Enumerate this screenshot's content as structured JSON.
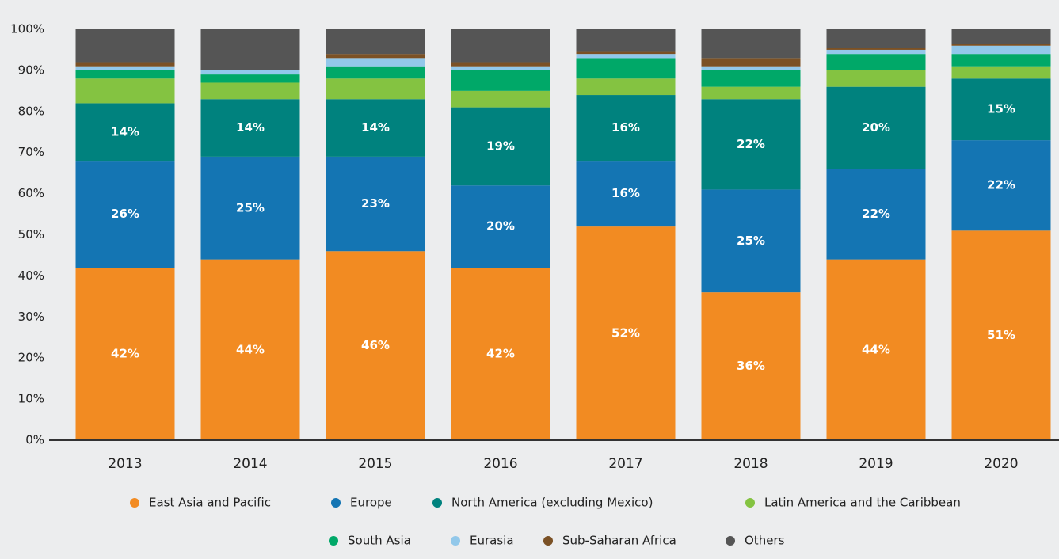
{
  "chart_data": {
    "type": "stacked_bar",
    "categories": [
      "2013",
      "2014",
      "2015",
      "2016",
      "2017",
      "2018",
      "2019",
      "2020"
    ],
    "series": [
      {
        "name": "East Asia and Pacific",
        "color": "#f28b22",
        "values": [
          42,
          44,
          46,
          42,
          52,
          36,
          44,
          51
        ],
        "value_labels": [
          "42%",
          "44%",
          "46%",
          "42%",
          "52%",
          "36%",
          "44%",
          "51%"
        ]
      },
      {
        "name": "Europe",
        "color": "#1475b3",
        "values": [
          26,
          25,
          23,
          20,
          16,
          25,
          22,
          22
        ],
        "value_labels": [
          "26%",
          "25%",
          "23%",
          "20%",
          "16%",
          "25%",
          "22%",
          "22%"
        ]
      },
      {
        "name": "North America (excluding Mexico)",
        "color": "#00827e",
        "values": [
          14,
          14,
          14,
          19,
          16,
          22,
          20,
          15
        ],
        "value_labels": [
          "14%",
          "14%",
          "14%",
          "19%",
          "16%",
          "22%",
          "20%",
          "15%"
        ]
      },
      {
        "name": "Latin America and the Caribbean",
        "color": "#84c341",
        "values": [
          6,
          4,
          5,
          4,
          4,
          3,
          4,
          3
        ]
      },
      {
        "name": "South Asia",
        "color": "#00a868",
        "values": [
          2,
          2,
          3,
          5,
          5,
          4,
          4,
          3
        ]
      },
      {
        "name": "Eurasia",
        "color": "#92c8ea",
        "values": [
          1,
          1,
          2,
          1,
          1,
          1,
          1,
          2
        ]
      },
      {
        "name": "Sub-Saharan Africa",
        "color": "#7b5125",
        "values": [
          1,
          0,
          1,
          1,
          0.5,
          2,
          0.5,
          0.5
        ]
      },
      {
        "name": "Others",
        "color": "#555555",
        "values": [
          8,
          10,
          6,
          8,
          5.5,
          7,
          4.5,
          3.5
        ]
      }
    ],
    "ylim": [
      0,
      100
    ],
    "yticks": [
      {
        "value": 0,
        "label": "0%"
      },
      {
        "value": 10,
        "label": "10%"
      },
      {
        "value": 20,
        "label": "20%"
      },
      {
        "value": 30,
        "label": "30%"
      },
      {
        "value": 40,
        "label": "40%"
      },
      {
        "value": 50,
        "label": "50%"
      },
      {
        "value": 60,
        "label": "60%"
      },
      {
        "value": 70,
        "label": "70%"
      },
      {
        "value": 80,
        "label": "80%"
      },
      {
        "value": 90,
        "label": "90%"
      },
      {
        "value": 100,
        "label": "100%"
      }
    ],
    "legend": "bottom"
  }
}
